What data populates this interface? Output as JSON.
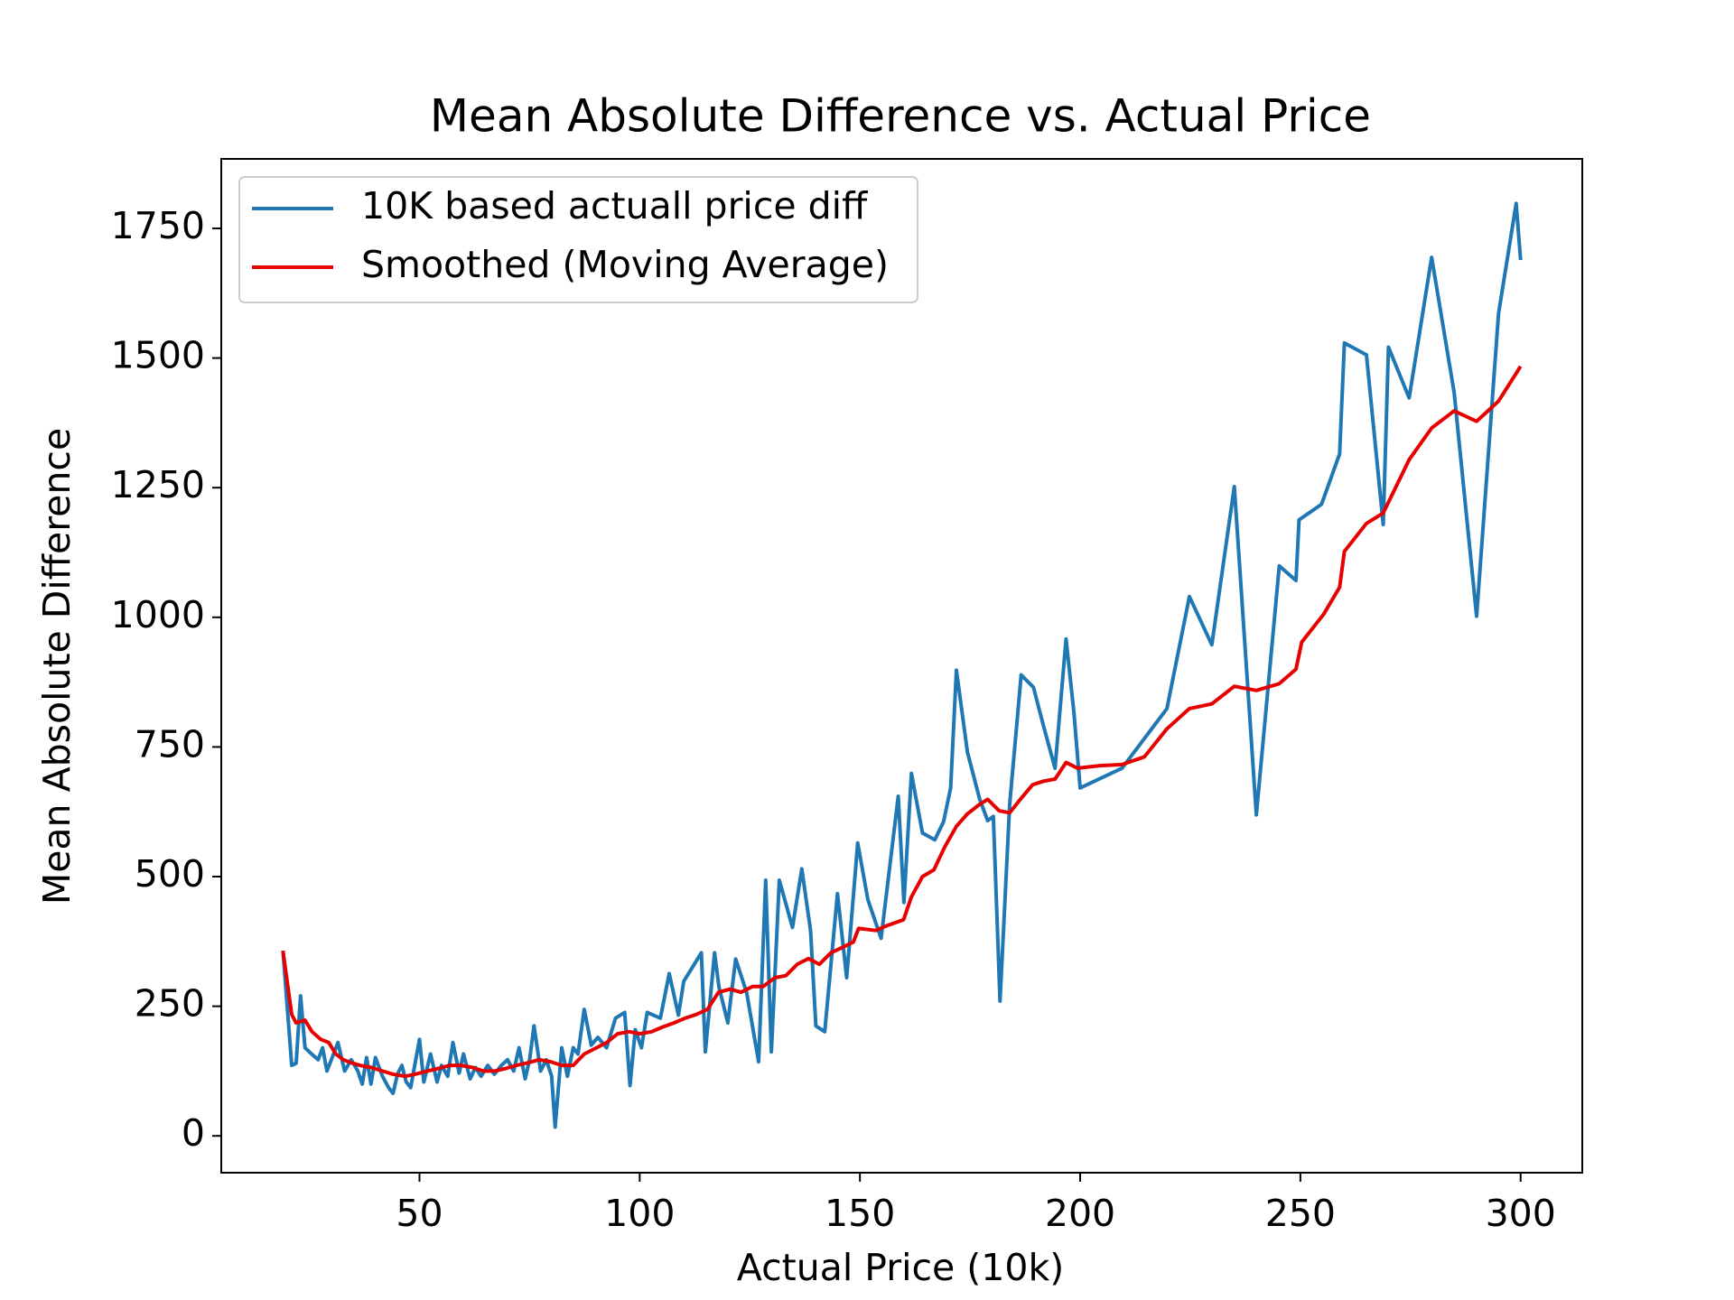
{
  "chart_data": {
    "type": "line",
    "title": "Mean Absolute Difference vs. Actual Price",
    "x_label": "Actual Price (10k)",
    "y_label": "Mean Absolute Difference",
    "xlim": [
      5,
      314
    ],
    "ylim": [
      -71,
      1884
    ],
    "xticks": [
      50,
      100,
      150,
      200,
      250,
      300
    ],
    "yticks": [
      0,
      250,
      500,
      750,
      1000,
      1250,
      1500,
      1750
    ],
    "legend": "upper left",
    "series": [
      {
        "name": "10K based actuall price diff",
        "color": "#1f77b4",
        "x": [
          19,
          21,
          22,
          23,
          24,
          25.5,
          27,
          28,
          29,
          30,
          31.5,
          33,
          34.5,
          36,
          37,
          38,
          39,
          40,
          41.6,
          43,
          44,
          45,
          46,
          47,
          48,
          50,
          51,
          52.5,
          54,
          55,
          56.4,
          57.6,
          59,
          60,
          61.5,
          62.7,
          64,
          65.5,
          67,
          68.6,
          70,
          71.4,
          72.6,
          74,
          75,
          76,
          77.5,
          78.8,
          80,
          80.8,
          82.3,
          83.6,
          84.9,
          86,
          87.4,
          89,
          90.5,
          92.5,
          94.5,
          96.6,
          97.8,
          99,
          100.4,
          101.7,
          104.7,
          106.7,
          108.8,
          110,
          114,
          114.9,
          117,
          118,
          120,
          121.8,
          124.3,
          127,
          128.6,
          129.9,
          131.7,
          134.7,
          136.8,
          138.8,
          140,
          142,
          144.9,
          147,
          149.5,
          151.8,
          154.8,
          158.7,
          160,
          161.7,
          164.2,
          167,
          169,
          170.6,
          171.9,
          174.4,
          177.2,
          179,
          180.3,
          181.8,
          184,
          186.6,
          189.4,
          191.7,
          194.3,
          196.8,
          198.6,
          200,
          209.5,
          219.7,
          224.8,
          229.9,
          235,
          240,
          245.2,
          249,
          249.7,
          254.8,
          258.9,
          260,
          265,
          268.8,
          270,
          274.7,
          279.8,
          284.9,
          290,
          295,
          299,
          300
        ],
        "values": [
          357,
          136,
          140,
          270,
          170,
          158,
          147,
          170,
          125,
          147,
          180,
          125,
          147,
          125,
          100,
          151,
          100,
          151,
          115,
          93,
          82,
          119,
          136,
          104,
          93,
          186,
          104,
          158,
          104,
          136,
          115,
          180,
          121,
          158,
          110,
          132,
          115,
          136,
          119,
          136,
          147,
          125,
          170,
          110,
          147,
          212,
          125,
          147,
          115,
          17,
          170,
          115,
          170,
          158,
          244,
          175,
          190,
          170,
          227,
          238,
          97,
          205,
          170,
          238,
          227,
          313,
          233,
          298,
          353,
          162,
          353,
          287,
          218,
          341,
          276,
          143,
          493,
          162,
          493,
          402,
          515,
          396,
          212,
          201,
          467,
          305,
          565,
          456,
          381,
          655,
          450,
          699,
          584,
          571,
          606,
          671,
          898,
          740,
          649,
          608,
          616,
          260,
          640,
          889,
          865,
          790,
          709,
          958,
          815,
          671,
          709,
          824,
          1040,
          947,
          1252,
          619,
          1099,
          1071,
          1188,
          1218,
          1315,
          1529,
          1506,
          1179,
          1521,
          1423,
          1694,
          1434,
          1002,
          1586,
          1798,
          1689
        ]
      },
      {
        "name": "Smoothed (Moving Average)",
        "color": "#e60000",
        "x": [
          19,
          21,
          22,
          24,
          25.6,
          27.6,
          29.4,
          31,
          32.7,
          34.5,
          36.5,
          39,
          41.6,
          44,
          46.7,
          49,
          51.8,
          54.3,
          56.9,
          59.4,
          62,
          64.5,
          67,
          69.6,
          72,
          74.7,
          77.2,
          79.8,
          82.3,
          84.9,
          87.4,
          90,
          92.5,
          95,
          97.6,
          100.1,
          102.7,
          105.2,
          107.8,
          110.3,
          112.8,
          115.4,
          117.9,
          120.5,
          123,
          125.6,
          128,
          130.7,
          133.2,
          135.8,
          138.3,
          140.8,
          143.4,
          145.9,
          148.5,
          149.7,
          153.6,
          156,
          159.9,
          161.7,
          164.2,
          166.8,
          169.3,
          171.9,
          174.4,
          177,
          179,
          181.6,
          184,
          186.6,
          189.2,
          191.7,
          194.3,
          196.8,
          199.4,
          204.5,
          209.5,
          214.6,
          219.7,
          224.8,
          229.9,
          235,
          240,
          245.2,
          249,
          250.3,
          255.3,
          258.9,
          260,
          265,
          268.8,
          274.7,
          279.8,
          284.9,
          290,
          295,
          300
        ],
        "values": [
          357,
          234,
          218,
          223,
          201,
          186,
          180,
          158,
          147,
          141,
          136,
          132,
          125,
          119,
          115,
          119,
          125,
          130,
          136,
          136,
          132,
          125,
          125,
          130,
          136,
          141,
          147,
          143,
          136,
          136,
          158,
          169,
          180,
          197,
          201,
          197,
          201,
          210,
          218,
          227,
          234,
          244,
          277,
          283,
          277,
          288,
          288,
          305,
          309,
          331,
          342,
          331,
          353,
          363,
          374,
          400,
          396,
          405,
          417,
          461,
          500,
          513,
          558,
          597,
          621,
          638,
          649,
          627,
          623,
          651,
          677,
          684,
          688,
          720,
          709,
          714,
          716,
          731,
          785,
          824,
          833,
          867,
          859,
          872,
          900,
          952,
          1006,
          1058,
          1127,
          1181,
          1201,
          1304,
          1365,
          1398,
          1378,
          1417,
          1484
        ]
      }
    ]
  }
}
